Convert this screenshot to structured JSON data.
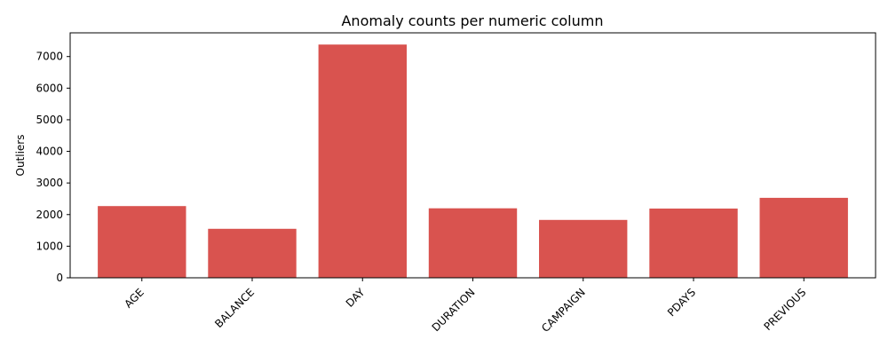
{
  "chart_data": {
    "type": "bar",
    "title": "Anomaly counts per numeric column",
    "xlabel": "",
    "ylabel": "Outliers",
    "categories": [
      "AGE",
      "BALANCE",
      "DAY",
      "DURATION",
      "CAMPAIGN",
      "PDAYS",
      "PREVIOUS"
    ],
    "values": [
      2270,
      1550,
      7380,
      2200,
      1830,
      2190,
      2530
    ],
    "ylim": [
      0,
      7750
    ],
    "yticks": [
      0,
      1000,
      2000,
      3000,
      4000,
      5000,
      6000,
      7000
    ],
    "grid": false,
    "legend": "none",
    "bar_color": "#d9534f"
  }
}
